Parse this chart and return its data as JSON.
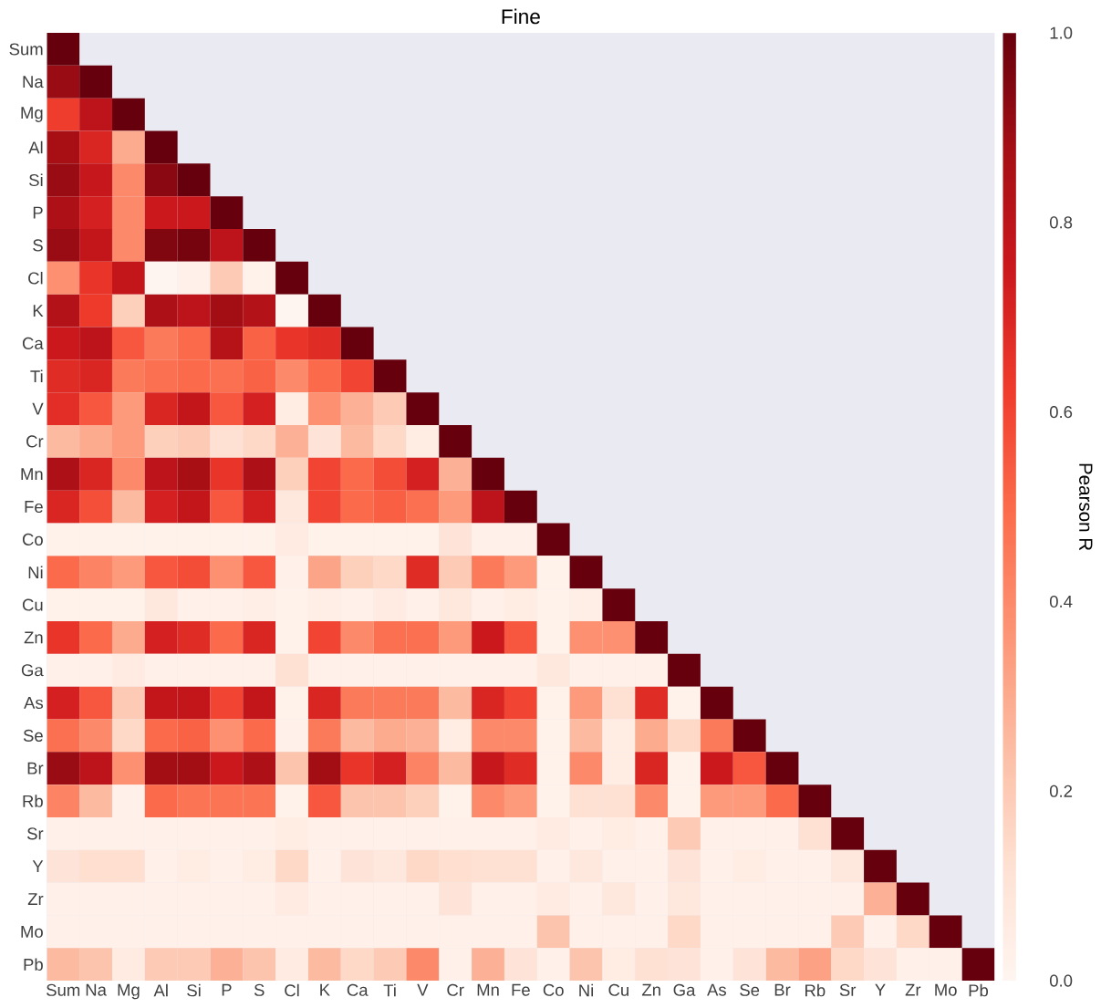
{
  "chart_data": {
    "type": "heatmap",
    "title": "Fine",
    "clabel": "Pearson R",
    "categories": [
      "Sum",
      "Na",
      "Mg",
      "Al",
      "Si",
      "P",
      "S",
      "Cl",
      "K",
      "Ca",
      "Ti",
      "V",
      "Cr",
      "Mn",
      "Fe",
      "Co",
      "Ni",
      "Cu",
      "Zn",
      "Ga",
      "As",
      "Se",
      "Br",
      "Rb",
      "Sr",
      "Y",
      "Zr",
      "Mo",
      "Pb"
    ],
    "y_categories": [
      "Sum",
      "Na",
      "Mg",
      "Al",
      "Si",
      "P",
      "S",
      "Cl",
      "K",
      "Ca",
      "Ti",
      "V",
      "Cr",
      "Mn",
      "Fe",
      "Co",
      "Ni",
      "Cu",
      "Zn",
      "Ga",
      "As",
      "Se",
      "Br",
      "Rb",
      "Sr",
      "Y",
      "Zr",
      "Mo",
      "Pb"
    ],
    "cells": [
      [
        1,
        null,
        null,
        null,
        null,
        null,
        null,
        null,
        null,
        null,
        null,
        null,
        null,
        null,
        null,
        null,
        null,
        null,
        null,
        null,
        null,
        null,
        null,
        null,
        null,
        null,
        null,
        null,
        null
      ],
      [
        0.9,
        1,
        null,
        null,
        null,
        null,
        null,
        null,
        null,
        null,
        null,
        null,
        null,
        null,
        null,
        null,
        null,
        null,
        null,
        null,
        null,
        null,
        null,
        null,
        null,
        null,
        null,
        null,
        null
      ],
      [
        0.62,
        0.8,
        1,
        null,
        null,
        null,
        null,
        null,
        null,
        null,
        null,
        null,
        null,
        null,
        null,
        null,
        null,
        null,
        null,
        null,
        null,
        null,
        null,
        null,
        null,
        null,
        null,
        null,
        null
      ],
      [
        0.87,
        0.7,
        0.3,
        1,
        null,
        null,
        null,
        null,
        null,
        null,
        null,
        null,
        null,
        null,
        null,
        null,
        null,
        null,
        null,
        null,
        null,
        null,
        null,
        null,
        null,
        null,
        null,
        null,
        null
      ],
      [
        0.9,
        0.77,
        0.4,
        0.93,
        1,
        null,
        null,
        null,
        null,
        null,
        null,
        null,
        null,
        null,
        null,
        null,
        null,
        null,
        null,
        null,
        null,
        null,
        null,
        null,
        null,
        null,
        null,
        null,
        null
      ],
      [
        0.85,
        0.72,
        0.4,
        0.75,
        0.75,
        1,
        null,
        null,
        null,
        null,
        null,
        null,
        null,
        null,
        null,
        null,
        null,
        null,
        null,
        null,
        null,
        null,
        null,
        null,
        null,
        null,
        null,
        null,
        null
      ],
      [
        0.9,
        0.78,
        0.4,
        0.95,
        0.97,
        0.8,
        1,
        null,
        null,
        null,
        null,
        null,
        null,
        null,
        null,
        null,
        null,
        null,
        null,
        null,
        null,
        null,
        null,
        null,
        null,
        null,
        null,
        null,
        null
      ],
      [
        0.38,
        0.65,
        0.78,
        0,
        0.03,
        0.2,
        0.02,
        1,
        null,
        null,
        null,
        null,
        null,
        null,
        null,
        null,
        null,
        null,
        null,
        null,
        null,
        null,
        null,
        null,
        null,
        null,
        null,
        null,
        null
      ],
      [
        0.83,
        0.63,
        0.18,
        0.85,
        0.8,
        0.88,
        0.83,
        0,
        1,
        null,
        null,
        null,
        null,
        null,
        null,
        null,
        null,
        null,
        null,
        null,
        null,
        null,
        null,
        null,
        null,
        null,
        null,
        null,
        null
      ],
      [
        0.75,
        0.8,
        0.55,
        0.45,
        0.5,
        0.82,
        0.52,
        0.65,
        0.68,
        1,
        null,
        null,
        null,
        null,
        null,
        null,
        null,
        null,
        null,
        null,
        null,
        null,
        null,
        null,
        null,
        null,
        null,
        null,
        null
      ],
      [
        0.68,
        0.7,
        0.45,
        0.48,
        0.5,
        0.48,
        0.52,
        0.4,
        0.5,
        0.6,
        1,
        null,
        null,
        null,
        null,
        null,
        null,
        null,
        null,
        null,
        null,
        null,
        null,
        null,
        null,
        null,
        null,
        null,
        null
      ],
      [
        0.67,
        0.55,
        0.35,
        0.7,
        0.78,
        0.55,
        0.72,
        0.05,
        0.38,
        0.28,
        0.2,
        1,
        null,
        null,
        null,
        null,
        null,
        null,
        null,
        null,
        null,
        null,
        null,
        null,
        null,
        null,
        null,
        null,
        null
      ],
      [
        0.25,
        0.3,
        0.35,
        0.18,
        0.2,
        0.12,
        0.15,
        0.28,
        0.1,
        0.25,
        0.15,
        0.05,
        1,
        null,
        null,
        null,
        null,
        null,
        null,
        null,
        null,
        null,
        null,
        null,
        null,
        null,
        null,
        null,
        null
      ],
      [
        0.85,
        0.7,
        0.4,
        0.8,
        0.87,
        0.65,
        0.85,
        0.18,
        0.6,
        0.5,
        0.58,
        0.72,
        0.28,
        1,
        null,
        null,
        null,
        null,
        null,
        null,
        null,
        null,
        null,
        null,
        null,
        null,
        null,
        null,
        null
      ],
      [
        0.7,
        0.57,
        0.25,
        0.72,
        0.78,
        0.55,
        0.73,
        0.08,
        0.6,
        0.5,
        0.53,
        0.48,
        0.35,
        0.8,
        1,
        null,
        null,
        null,
        null,
        null,
        null,
        null,
        null,
        null,
        null,
        null,
        null,
        null,
        null
      ],
      [
        0.02,
        0.02,
        0.02,
        0.02,
        0.02,
        0.02,
        0.02,
        0.06,
        0.02,
        0.02,
        0.02,
        0.02,
        0.1,
        0.03,
        0.03,
        1,
        null,
        null,
        null,
        null,
        null,
        null,
        null,
        null,
        null,
        null,
        null,
        null,
        null
      ],
      [
        0.5,
        0.42,
        0.35,
        0.55,
        0.58,
        0.38,
        0.55,
        0.03,
        0.32,
        0.18,
        0.15,
        0.68,
        0.2,
        0.45,
        0.35,
        0.02,
        1,
        null,
        null,
        null,
        null,
        null,
        null,
        null,
        null,
        null,
        null,
        null,
        null
      ],
      [
        0.02,
        0.02,
        0.02,
        0.08,
        0.03,
        0.03,
        0.04,
        0.02,
        0.04,
        0.03,
        0.06,
        0.03,
        0.08,
        0.03,
        0.05,
        0.02,
        0.04,
        1,
        null,
        null,
        null,
        null,
        null,
        null,
        null,
        null,
        null,
        null,
        null
      ],
      [
        0.65,
        0.5,
        0.3,
        0.72,
        0.68,
        0.5,
        0.7,
        0.02,
        0.6,
        0.4,
        0.48,
        0.48,
        0.35,
        0.75,
        0.55,
        0.02,
        0.38,
        0.38,
        1,
        null,
        null,
        null,
        null,
        null,
        null,
        null,
        null,
        null,
        null
      ],
      [
        0.03,
        0.03,
        0.06,
        0.03,
        0.03,
        0.03,
        0.03,
        0.12,
        0.03,
        0.03,
        0.03,
        0.03,
        0.03,
        0.03,
        0.03,
        0.08,
        0.03,
        0.03,
        0.03,
        1,
        null,
        null,
        null,
        null,
        null,
        null,
        null,
        null,
        null
      ],
      [
        0.72,
        0.55,
        0.2,
        0.78,
        0.78,
        0.6,
        0.78,
        0.02,
        0.7,
        0.45,
        0.45,
        0.45,
        0.25,
        0.7,
        0.6,
        0.02,
        0.35,
        0.12,
        0.68,
        0.02,
        1,
        null,
        null,
        null,
        null,
        null,
        null,
        null,
        null
      ],
      [
        0.48,
        0.4,
        0.15,
        0.5,
        0.52,
        0.38,
        0.5,
        0.03,
        0.45,
        0.25,
        0.3,
        0.28,
        0.05,
        0.4,
        0.4,
        0.02,
        0.25,
        0.05,
        0.3,
        0.15,
        0.45,
        1,
        null,
        null,
        null,
        null,
        null,
        null,
        null
      ],
      [
        0.9,
        0.8,
        0.38,
        0.88,
        0.88,
        0.75,
        0.85,
        0.22,
        0.88,
        0.65,
        0.72,
        0.42,
        0.25,
        0.77,
        0.68,
        0.02,
        0.4,
        0.05,
        0.7,
        0.02,
        0.75,
        0.55,
        1,
        null,
        null,
        null,
        null,
        null,
        null
      ],
      [
        0.42,
        0.25,
        0.03,
        0.5,
        0.47,
        0.47,
        0.47,
        0.02,
        0.55,
        0.22,
        0.22,
        0.18,
        0.02,
        0.4,
        0.35,
        0.02,
        0.12,
        0.12,
        0.4,
        0.02,
        0.35,
        0.35,
        0.5,
        1,
        null,
        null,
        null,
        null,
        null
      ],
      [
        0.03,
        0.03,
        0.03,
        0.03,
        0.03,
        0.03,
        0.03,
        0.05,
        0.03,
        0.03,
        0.03,
        0.03,
        0.03,
        0.03,
        0.03,
        0.06,
        0.03,
        0.05,
        0.03,
        0.2,
        0.03,
        0.03,
        0.03,
        0.12,
        1,
        null,
        null,
        null,
        null
      ],
      [
        0.1,
        0.13,
        0.13,
        0.03,
        0.05,
        0.03,
        0.05,
        0.15,
        0.03,
        0.1,
        0.08,
        0.15,
        0.13,
        0.12,
        0.12,
        0.03,
        0.08,
        0.03,
        0.03,
        0.1,
        0.03,
        0.05,
        0.03,
        0.03,
        0.08,
        1,
        null,
        null,
        null
      ],
      [
        0.03,
        0.03,
        0.03,
        0.03,
        0.03,
        0.03,
        0.03,
        0.06,
        0.03,
        0.03,
        0.03,
        0.03,
        0.1,
        0.03,
        0.03,
        0.06,
        0.03,
        0.08,
        0.03,
        0.08,
        0.03,
        0.03,
        0.03,
        0.03,
        0.03,
        0.28,
        1,
        null,
        null
      ],
      [
        0.03,
        0.03,
        0.03,
        0.03,
        0.03,
        0.03,
        0.03,
        0.03,
        0.03,
        0.03,
        0.03,
        0.03,
        0.03,
        0.03,
        0.03,
        0.22,
        0.03,
        0.03,
        0.03,
        0.15,
        0.03,
        0.03,
        0.03,
        0.03,
        0.2,
        0.03,
        0.15,
        1,
        null
      ],
      [
        0.25,
        0.22,
        0.06,
        0.2,
        0.2,
        0.28,
        0.22,
        0.06,
        0.25,
        0.15,
        0.2,
        0.4,
        0.03,
        0.28,
        0.1,
        0.03,
        0.22,
        0.05,
        0.12,
        0.1,
        0.03,
        0.1,
        0.25,
        0.33,
        0.15,
        0.1,
        0.03,
        0.03,
        1
      ]
    ],
    "clim": [
      0,
      1
    ],
    "cticks": [
      {
        "value": 0,
        "label": "0.0"
      },
      {
        "value": 0.2,
        "label": "0.2"
      },
      {
        "value": 0.4,
        "label": "0.4"
      },
      {
        "value": 0.6,
        "label": "0.6"
      },
      {
        "value": 0.8,
        "label": "0.8"
      },
      {
        "value": 1,
        "label": "1.0"
      }
    ]
  }
}
